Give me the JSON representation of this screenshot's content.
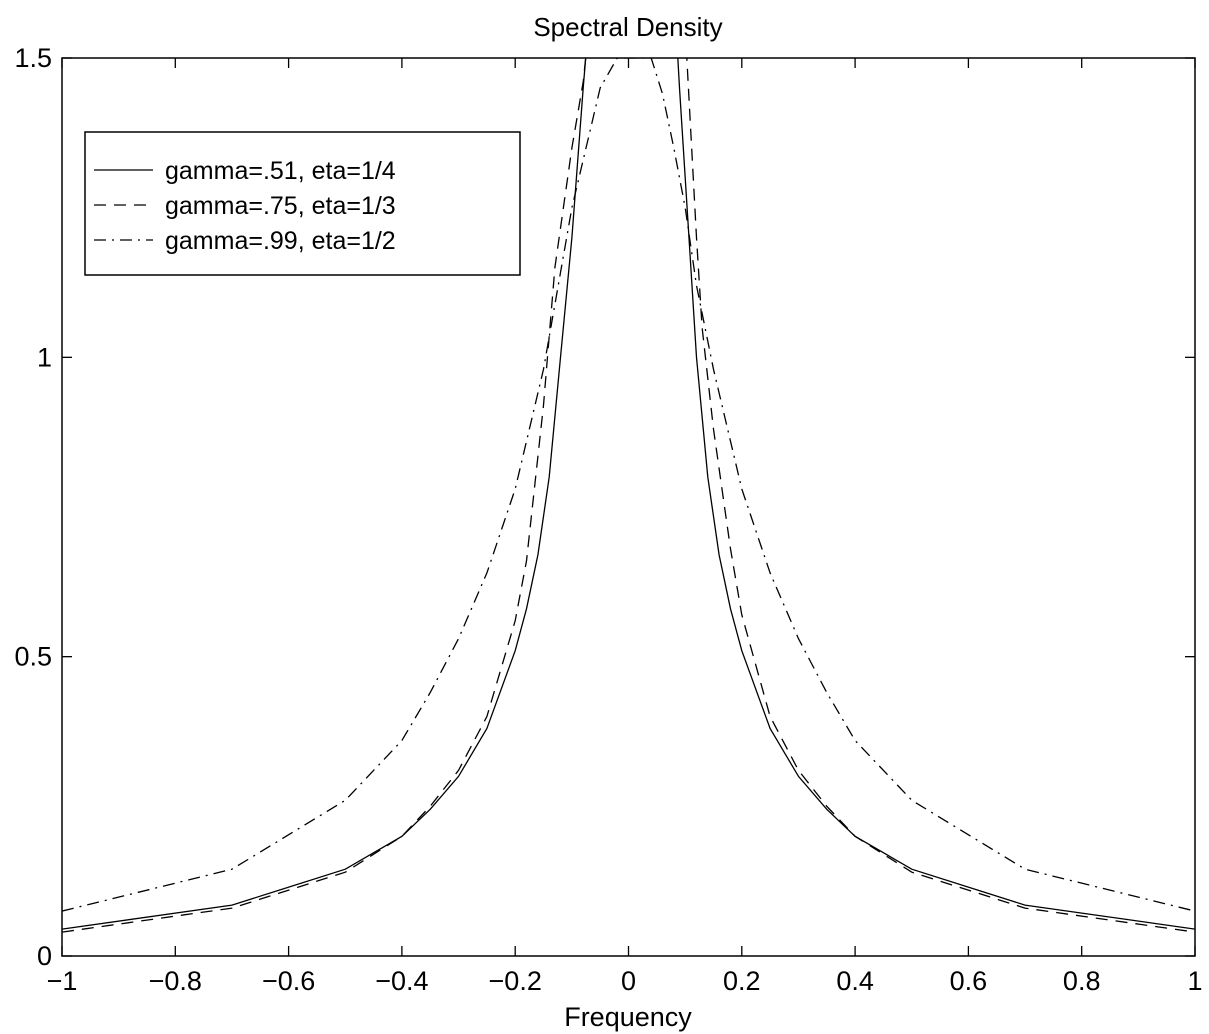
{
  "chart_data": {
    "type": "line",
    "title": "Spectral Density",
    "xlabel": "Frequency",
    "ylabel": "",
    "xlim": [
      -1,
      1
    ],
    "ylim": [
      0,
      1.5
    ],
    "xticks": [
      -1,
      -0.8,
      -0.6,
      -0.4,
      -0.2,
      0,
      0.2,
      0.4,
      0.6,
      0.8,
      1
    ],
    "xtick_labels": [
      "−1",
      "−0.8",
      "−0.6",
      "−0.4",
      "−0.2",
      "0",
      "0.2",
      "0.4",
      "0.6",
      "0.8",
      "1"
    ],
    "yticks": [
      0,
      0.5,
      1,
      1.5
    ],
    "ytick_labels": [
      "0",
      "0.5",
      "1",
      "1.5"
    ],
    "grid": false,
    "legend_position": "top-left",
    "series": [
      {
        "name": "gamma=.51, eta=1/4",
        "style": "solid",
        "x": [
          -1,
          -0.7,
          -0.5,
          -0.4,
          -0.35,
          -0.3,
          -0.25,
          -0.2,
          -0.18,
          -0.16,
          -0.14,
          -0.12,
          -0.1,
          -0.08,
          -0.065,
          0.08,
          0.09,
          0.1,
          0.12,
          0.14,
          0.16,
          0.18,
          0.2,
          0.25,
          0.3,
          0.35,
          0.4,
          0.5,
          0.7,
          1
        ],
        "y": [
          0.045,
          0.085,
          0.145,
          0.2,
          0.245,
          0.3,
          0.38,
          0.51,
          0.58,
          0.67,
          0.8,
          1.0,
          1.2,
          1.45,
          1.62,
          1.62,
          1.45,
          1.3,
          1.0,
          0.8,
          0.67,
          0.58,
          0.51,
          0.38,
          0.3,
          0.245,
          0.2,
          0.145,
          0.085,
          0.045
        ]
      },
      {
        "name": "gamma=.75, eta=1/3",
        "style": "dashed",
        "x": [
          -1,
          -0.7,
          -0.5,
          -0.4,
          -0.35,
          -0.3,
          -0.25,
          -0.2,
          -0.18,
          -0.15,
          -0.13,
          -0.1,
          -0.08,
          -0.07,
          0.1,
          0.12,
          0.13,
          0.15,
          0.18,
          0.2,
          0.25,
          0.3,
          0.35,
          0.4,
          0.5,
          0.7,
          1
        ],
        "y": [
          0.04,
          0.08,
          0.14,
          0.2,
          0.25,
          0.31,
          0.4,
          0.56,
          0.66,
          0.92,
          1.15,
          1.35,
          1.46,
          1.55,
          1.55,
          1.2,
          1.05,
          0.88,
          0.68,
          0.57,
          0.4,
          0.31,
          0.25,
          0.2,
          0.14,
          0.08,
          0.04
        ]
      },
      {
        "name": "gamma=.99, eta=1/2",
        "style": "dashdot",
        "x": [
          -1,
          -0.7,
          -0.5,
          -0.4,
          -0.35,
          -0.3,
          -0.25,
          -0.2,
          -0.15,
          -0.1,
          -0.05,
          -0.02,
          0.04,
          0.06,
          0.08,
          0.1,
          0.12,
          0.15,
          0.2,
          0.25,
          0.3,
          0.35,
          0.4,
          0.5,
          0.7,
          1
        ],
        "y": [
          0.075,
          0.145,
          0.26,
          0.36,
          0.44,
          0.53,
          0.64,
          0.78,
          0.98,
          1.25,
          1.45,
          1.5,
          1.5,
          1.44,
          1.35,
          1.25,
          1.12,
          0.98,
          0.78,
          0.64,
          0.53,
          0.44,
          0.36,
          0.26,
          0.145,
          0.075
        ]
      }
    ]
  }
}
